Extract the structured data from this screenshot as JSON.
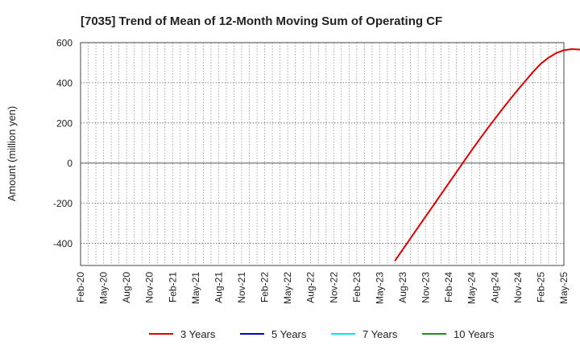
{
  "chart_data": {
    "type": "line",
    "title": "[7035]  Trend of Mean of 12-Month Moving Sum of Operating CF",
    "xlabel": "",
    "ylabel": "Amount (million yen)",
    "ylim": [
      -510,
      600
    ],
    "yticks": [
      600,
      400,
      200,
      0,
      -200,
      -400
    ],
    "xlim": [
      "2020-02",
      "2025-05"
    ],
    "xtick_labels": [
      "Feb-20",
      "May-20",
      "Aug-20",
      "Nov-20",
      "Feb-21",
      "May-21",
      "Aug-21",
      "Nov-21",
      "Feb-22",
      "May-22",
      "Aug-22",
      "Nov-22",
      "Feb-23",
      "May-23",
      "Aug-23",
      "Nov-23",
      "Feb-24",
      "May-24",
      "Aug-24",
      "Nov-24",
      "Feb-25",
      "May-25"
    ],
    "grid": true,
    "legend_position": "bottom",
    "series": [
      {
        "name": "3 Years",
        "color": "#e00000",
        "points": [
          [
            "2023-07",
            -485
          ],
          [
            "2023-08",
            -430
          ],
          [
            "2023-09",
            -375
          ],
          [
            "2023-10",
            -320
          ],
          [
            "2023-11",
            -265
          ],
          [
            "2023-12",
            -210
          ],
          [
            "2024-01",
            -155
          ],
          [
            "2024-02",
            -100
          ],
          [
            "2024-03",
            -45
          ],
          [
            "2024-04",
            10
          ],
          [
            "2024-05",
            65
          ],
          [
            "2024-06",
            118
          ],
          [
            "2024-07",
            170
          ],
          [
            "2024-08",
            220
          ],
          [
            "2024-09",
            270
          ],
          [
            "2024-10",
            318
          ],
          [
            "2024-11",
            365
          ],
          [
            "2024-12",
            410
          ],
          [
            "2025-01",
            455
          ],
          [
            "2025-02",
            495
          ],
          [
            "2025-03",
            525
          ],
          [
            "2025-04",
            548
          ],
          [
            "2025-05",
            562
          ],
          [
            "2025-06",
            568
          ],
          [
            "2025-07",
            566
          ],
          [
            "2025-08",
            557
          ]
        ]
      },
      {
        "name": "5 Years",
        "color": "#0000cc",
        "points": []
      },
      {
        "name": "7 Years",
        "color": "#00e5ff",
        "points": []
      },
      {
        "name": "10 Years",
        "color": "#228b22",
        "points": []
      }
    ]
  }
}
